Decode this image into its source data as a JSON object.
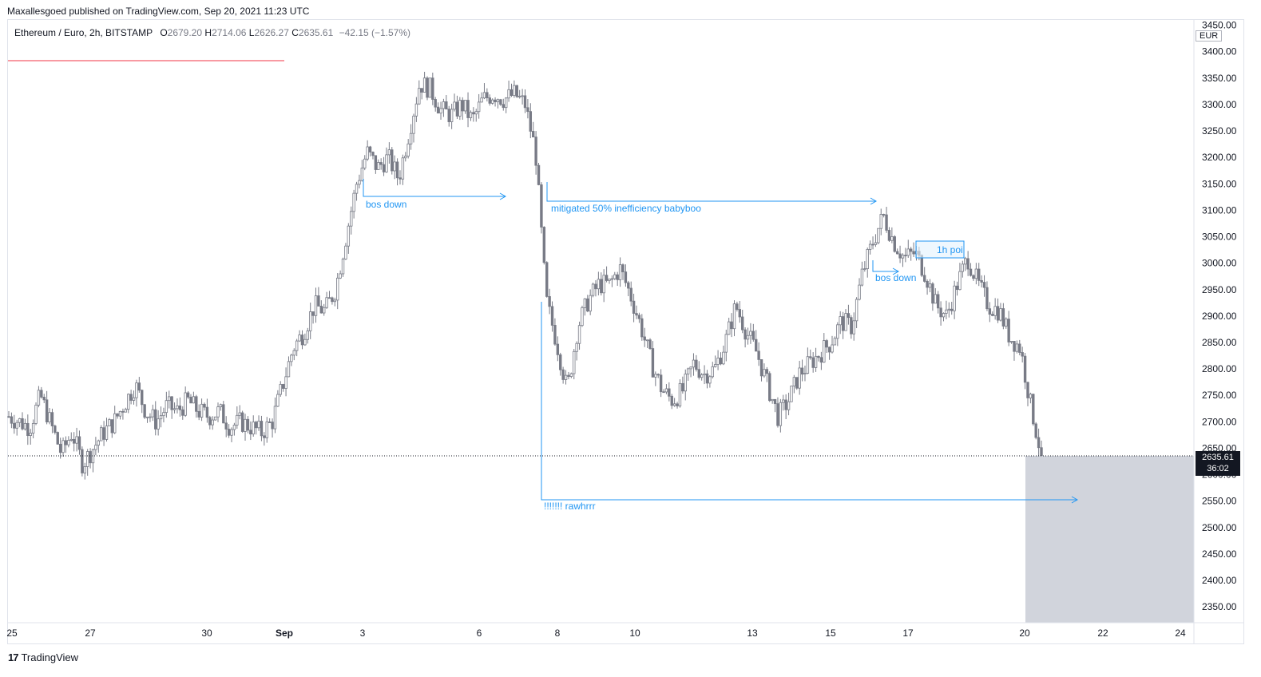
{
  "header": {
    "publish_line": "Maxallesgoed published on TradingView.com, Sep 20, 2021 11:23 UTC"
  },
  "legend": {
    "symbol": "Ethereum / Euro, 2h, BITSTAMP",
    "open_label": "O",
    "open": "2679.20",
    "high_label": "H",
    "high": "2714.06",
    "low_label": "L",
    "low": "2626.27",
    "close_label": "C",
    "close": "2635.61",
    "change": "−42.15 (−1.57%)"
  },
  "price_scale": {
    "currency": "EUR",
    "last_price": "2635.61",
    "countdown": "36:02"
  },
  "footer": {
    "brand": "TradingView"
  },
  "colors": {
    "candle": "#787b86",
    "annotation": "#2196f3",
    "red_line": "#f23645",
    "grey_box": "#d1d4dc"
  },
  "chart_data": {
    "type": "candlestick",
    "ylim": [
      2320,
      3460
    ],
    "y_ticks": [
      2350,
      2400,
      2450,
      2500,
      2550,
      2600,
      2650,
      2700,
      2750,
      2800,
      2850,
      2900,
      2950,
      3000,
      3050,
      3100,
      3150,
      3200,
      3250,
      3300,
      3350,
      3400,
      3450
    ],
    "x_ticks": [
      "25",
      "27",
      "30",
      "Sep",
      "3",
      "6",
      "8",
      "10",
      "13",
      "15",
      "17",
      "20",
      "22",
      "24"
    ],
    "last_price": 2635.61,
    "trace": [
      [
        0,
        2710
      ],
      [
        2,
        2690
      ],
      [
        3,
        2750
      ],
      [
        5,
        2640
      ],
      [
        6,
        2680
      ],
      [
        7,
        2620
      ],
      [
        9,
        2680
      ],
      [
        10,
        2700
      ],
      [
        12,
        2770
      ],
      [
        13,
        2720
      ],
      [
        14,
        2700
      ],
      [
        15,
        2730
      ],
      [
        16,
        2720
      ],
      [
        17,
        2740
      ],
      [
        18,
        2720
      ],
      [
        19,
        2710
      ],
      [
        20,
        2720
      ],
      [
        21,
        2690
      ],
      [
        22,
        2700
      ],
      [
        23,
        2690
      ],
      [
        24,
        2680
      ],
      [
        25,
        2700
      ],
      [
        26,
        2770
      ],
      [
        27,
        2840
      ],
      [
        28,
        2870
      ],
      [
        29,
        2920
      ],
      [
        30,
        2910
      ],
      [
        31,
        2950
      ],
      [
        32,
        3050
      ],
      [
        33,
        3150
      ],
      [
        34,
        3210
      ],
      [
        35,
        3180
      ],
      [
        36,
        3200
      ],
      [
        37,
        3160
      ],
      [
        38,
        3250
      ],
      [
        39,
        3340
      ],
      [
        40,
        3330
      ],
      [
        41,
        3290
      ],
      [
        42,
        3280
      ],
      [
        43,
        3300
      ],
      [
        44,
        3270
      ],
      [
        45,
        3310
      ],
      [
        46,
        3320
      ],
      [
        47,
        3310
      ],
      [
        48,
        3320
      ],
      [
        49,
        3300
      ],
      [
        50,
        3210
      ],
      [
        51,
        2930
      ],
      [
        52,
        2850
      ],
      [
        53,
        2760
      ],
      [
        54,
        2880
      ],
      [
        55,
        2930
      ],
      [
        56,
        2960
      ],
      [
        57,
        2960
      ],
      [
        58,
        2990
      ],
      [
        59,
        2940
      ],
      [
        60,
        2880
      ],
      [
        61,
        2810
      ],
      [
        62,
        2760
      ],
      [
        63,
        2740
      ],
      [
        64,
        2760
      ],
      [
        65,
        2810
      ],
      [
        66,
        2790
      ],
      [
        67,
        2800
      ],
      [
        68,
        2850
      ],
      [
        69,
        2920
      ],
      [
        70,
        2870
      ],
      [
        71,
        2830
      ],
      [
        72,
        2770
      ],
      [
        73,
        2710
      ],
      [
        74,
        2740
      ],
      [
        75,
        2790
      ],
      [
        76,
        2810
      ],
      [
        77,
        2830
      ],
      [
        78,
        2850
      ],
      [
        79,
        2890
      ],
      [
        80,
        2880
      ],
      [
        81,
        2980
      ],
      [
        82,
        3040
      ],
      [
        83,
        3090
      ],
      [
        84,
        3040
      ],
      [
        85,
        3010
      ],
      [
        86,
        3020
      ],
      [
        87,
        2980
      ],
      [
        88,
        2920
      ],
      [
        89,
        2900
      ],
      [
        90,
        2960
      ],
      [
        91,
        3010
      ],
      [
        92,
        2960
      ],
      [
        93,
        2920
      ],
      [
        94,
        2910
      ],
      [
        95,
        2860
      ],
      [
        96,
        2840
      ],
      [
        97,
        2730
      ],
      [
        98,
        2635.61
      ]
    ],
    "annotations": [
      {
        "text": "bos down"
      },
      {
        "text": "mitigated 50% inefficiency babyboo"
      },
      {
        "text": "1h poi"
      },
      {
        "text": "bos down"
      },
      {
        "text": "!!!!!!! rawhrrr"
      }
    ]
  }
}
